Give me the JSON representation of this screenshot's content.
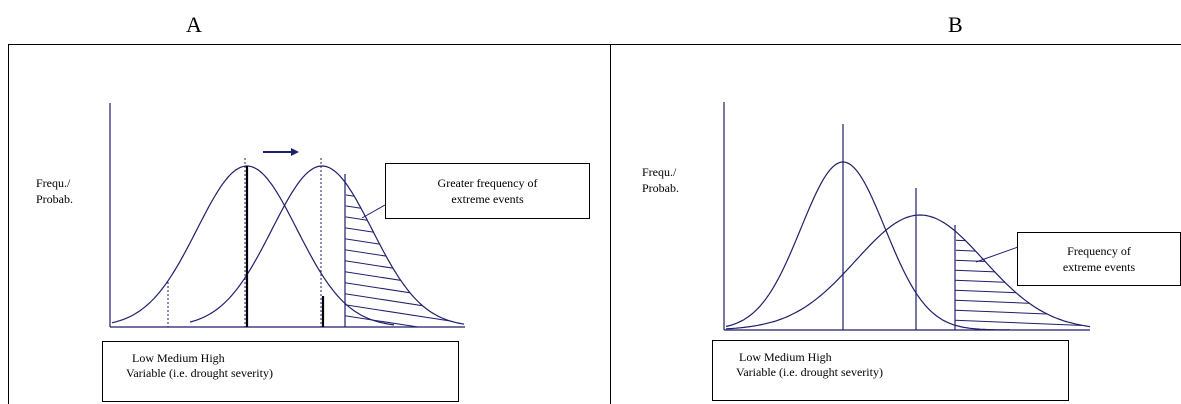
{
  "panels": [
    {
      "label": "A",
      "ylabel": "Frequ./\nProbab.",
      "callout": "Greater frequency of\nextreme events",
      "axis": {
        "line1": "Low Medium High",
        "line2": "Variable (i.e. drought severity)"
      }
    },
    {
      "label": "B",
      "ylabel": "Frequ./\nProbab.",
      "callout": "Frequency of\nextreme events",
      "axis": {
        "line1": "Low Medium High",
        "line2": "Variable (i.e. drought severity)"
      }
    }
  ],
  "colors": {
    "curve": "#1f1f6b",
    "line": "#000000"
  }
}
